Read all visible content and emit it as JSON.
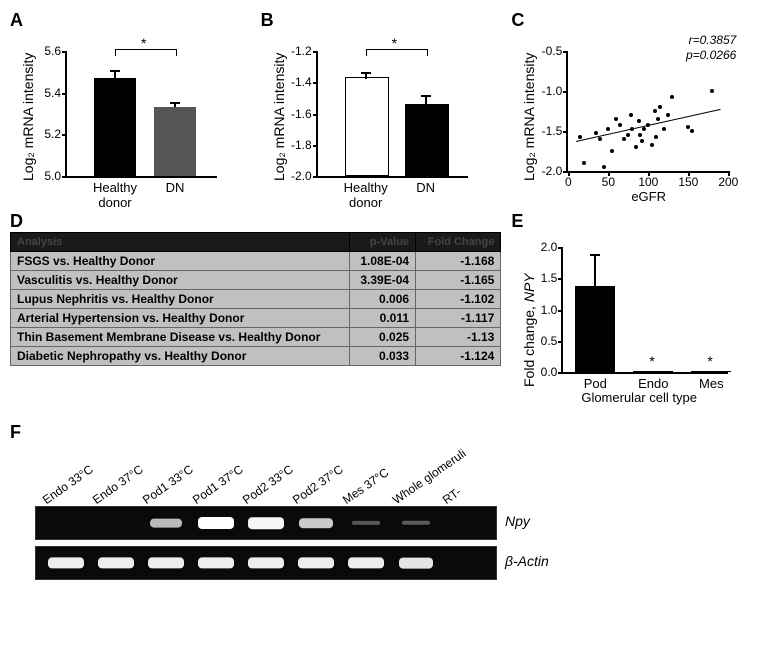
{
  "panels": {
    "A": {
      "label": "A",
      "type": "bar",
      "ylabel": "Log₂ mRNA intensity",
      "ylim": [
        5.0,
        5.6
      ],
      "yticks": [
        5.0,
        5.2,
        5.4,
        5.6
      ],
      "categories": [
        "Healthy donor",
        "DN"
      ],
      "values": [
        5.47,
        5.33
      ],
      "errors": [
        0.035,
        0.02
      ],
      "bar_colors": [
        "#000000",
        "#555555"
      ],
      "sig": "*",
      "fontsize_axis": 13
    },
    "B": {
      "label": "B",
      "type": "bar",
      "ylabel": "Log₂ mRNA intensity",
      "ylim": [
        -2.0,
        -1.2
      ],
      "yticks": [
        -2.0,
        -1.8,
        -1.6,
        -1.4,
        -1.2
      ],
      "categories": [
        "Healthy donor",
        "DN"
      ],
      "values": [
        -1.38,
        -1.55
      ],
      "errors": [
        0.04,
        0.06
      ],
      "bar_colors": [
        "#ffffff",
        "#000000"
      ],
      "bar_stroke": "#000000",
      "sig": "*",
      "fontsize_axis": 13
    },
    "C": {
      "label": "C",
      "type": "scatter",
      "ylabel": "Log₂ mRNA intensity",
      "xlabel": "eGFR",
      "xlim": [
        0,
        200
      ],
      "ylim": [
        -2.0,
        -0.5
      ],
      "xticks": [
        0,
        50,
        100,
        150,
        200
      ],
      "yticks": [
        -2.0,
        -1.5,
        -1.0,
        -0.5
      ],
      "stats": {
        "r": "r=0.3857",
        "p": "p=0.0266"
      },
      "reg_line": {
        "x1": 10,
        "y1": -1.62,
        "x2": 190,
        "y2": -1.22
      },
      "points": [
        [
          15,
          -1.58
        ],
        [
          20,
          -1.9
        ],
        [
          35,
          -1.52
        ],
        [
          40,
          -1.6
        ],
        [
          45,
          -1.95
        ],
        [
          50,
          -1.48
        ],
        [
          55,
          -1.75
        ],
        [
          60,
          -1.35
        ],
        [
          65,
          -1.42
        ],
        [
          70,
          -1.6
        ],
        [
          75,
          -1.55
        ],
        [
          78,
          -1.3
        ],
        [
          80,
          -1.48
        ],
        [
          85,
          -1.7
        ],
        [
          88,
          -1.38
        ],
        [
          90,
          -1.55
        ],
        [
          92,
          -1.62
        ],
        [
          95,
          -1.48
        ],
        [
          100,
          -1.42
        ],
        [
          105,
          -1.68
        ],
        [
          108,
          -1.25
        ],
        [
          110,
          -1.58
        ],
        [
          112,
          -1.35
        ],
        [
          115,
          -1.2
        ],
        [
          120,
          -1.48
        ],
        [
          125,
          -1.3
        ],
        [
          130,
          -1.08
        ],
        [
          150,
          -1.45
        ],
        [
          155,
          -1.5
        ],
        [
          180,
          -1.0
        ]
      ]
    },
    "D": {
      "label": "D",
      "type": "table",
      "headers": [
        "Analysis",
        "p-Value",
        "Fold Change"
      ],
      "rows": [
        [
          "FSGS vs. Healthy Donor",
          "1.08E-04",
          "-1.168"
        ],
        [
          "Vasculitis vs. Healthy Donor",
          "3.39E-04",
          "-1.165"
        ],
        [
          "Lupus Nephritis vs. Healthy Donor",
          "0.006",
          "-1.102"
        ],
        [
          "Arterial Hypertension vs. Healthy Donor",
          "0.011",
          "-1.117"
        ],
        [
          "Thin Basement Membrane Disease vs. Healthy Donor",
          "0.025",
          "-1.13"
        ],
        [
          "Diabetic Nephropathy vs. Healthy Donor",
          "0.033",
          "-1.124"
        ]
      ],
      "header_bg": "#1a1a1a",
      "row_bg": "#c0c0c0"
    },
    "E": {
      "label": "E",
      "type": "bar",
      "ylabel": "Fold change, NPY",
      "ylabel_italic_part": "NPY",
      "xlabel": "Glomerular cell type",
      "ylim": [
        0.0,
        2.0
      ],
      "yticks": [
        0.0,
        0.5,
        1.0,
        1.5,
        2.0
      ],
      "categories": [
        "Pod",
        "Endo",
        "Mes"
      ],
      "values": [
        1.38,
        0.02,
        0.02
      ],
      "errors": [
        0.5,
        0,
        0
      ],
      "bar_colors": [
        "#000000",
        "#000000",
        "#000000"
      ],
      "sig_marks": {
        "Endo": "*",
        "Mes": "*"
      }
    },
    "F": {
      "label": "F",
      "type": "gel",
      "lanes": [
        "Endo 33°C",
        "Endo 37°C",
        "Pod1 33°C",
        "Pod1 37°C",
        "Pod2 33°C",
        "Pod2 37°C",
        "Mes 37°C",
        "Whole glomeruli",
        "RT-"
      ],
      "rows": [
        {
          "label": "Npy",
          "label_italic": true,
          "bands": [
            0,
            0,
            0.6,
            1.0,
            0.95,
            0.7,
            0.02,
            0.05,
            0
          ]
        },
        {
          "label": "β-Actin",
          "label_italic": true,
          "bands": [
            0.9,
            0.9,
            0.9,
            0.9,
            0.9,
            0.9,
            0.9,
            0.85,
            0
          ]
        }
      ],
      "lane_width": 50,
      "gel_width": 460
    }
  },
  "colors": {
    "background": "#ffffff",
    "axis": "#000000",
    "text": "#000000"
  }
}
